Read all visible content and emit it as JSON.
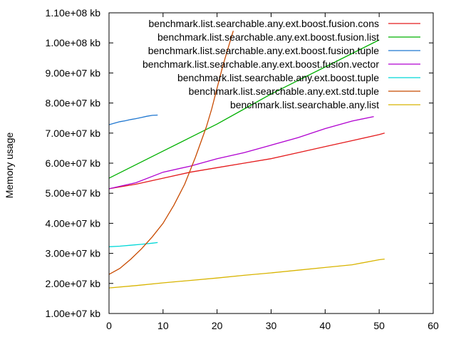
{
  "chart_data": {
    "type": "line",
    "title": "",
    "xlabel": "",
    "ylabel": "Memory usage",
    "xlim": [
      0,
      60
    ],
    "ylim": [
      10000000,
      110000000
    ],
    "x_ticks": [
      "0",
      "10",
      "20",
      "30",
      "40",
      "50",
      "60"
    ],
    "y_ticks": [
      "1.00e+07 kb",
      "2.00e+07 kb",
      "3.00e+07 kb",
      "4.00e+07 kb",
      "5.00e+07 kb",
      "6.00e+07 kb",
      "7.00e+07 kb",
      "8.00e+07 kb",
      "9.00e+07 kb",
      "1.00e+08 kb",
      "1.10e+08 kb"
    ],
    "grid": false,
    "legend_position": "top-right",
    "series": [
      {
        "name": "benchmark.list.searchable.any.ext.boost.fusion.cons",
        "color": "#e41a1c",
        "x": [
          0,
          5,
          10,
          15,
          20,
          25,
          30,
          35,
          40,
          45,
          50,
          51
        ],
        "y": [
          51500000,
          53000000,
          55000000,
          57000000,
          58500000,
          60000000,
          61500000,
          63500000,
          65500000,
          67500000,
          69500000,
          70000000
        ]
      },
      {
        "name": "benchmark.list.searchable.any.ext.boost.fusion.list",
        "color": "#00b000",
        "x": [
          0,
          5,
          10,
          15,
          20,
          25,
          30,
          35,
          40,
          45,
          50
        ],
        "y": [
          55000000,
          59500000,
          64000000,
          68500000,
          73000000,
          78000000,
          83000000,
          87500000,
          92000000,
          96500000,
          101000000
        ]
      },
      {
        "name": "benchmark.list.searchable.any.ext.boost.fusion.tuple",
        "color": "#1f77d0",
        "x": [
          0,
          1,
          2,
          3,
          4,
          5,
          6,
          7,
          8,
          9
        ],
        "y": [
          72800000,
          73300000,
          73800000,
          74100000,
          74500000,
          74800000,
          75200000,
          75600000,
          75900000,
          76000000
        ]
      },
      {
        "name": "benchmark.list.searchable.any.ext.boost.fusion.vector",
        "color": "#b000d0",
        "x": [
          0,
          5,
          10,
          15,
          20,
          25,
          30,
          35,
          40,
          45,
          49
        ],
        "y": [
          51500000,
          53500000,
          57000000,
          59000000,
          61500000,
          63500000,
          66000000,
          68500000,
          71500000,
          74000000,
          75500000
        ]
      },
      {
        "name": "benchmark.list.searchable.any.ext.boost.tuple",
        "color": "#00d8d8",
        "x": [
          0,
          2,
          4,
          6,
          8,
          9
        ],
        "y": [
          32200000,
          32400000,
          32700000,
          33000000,
          33400000,
          33600000
        ]
      },
      {
        "name": "benchmark.list.searchable.any.ext.std.tuple",
        "color": "#c84a00",
        "x": [
          0,
          2,
          4,
          6,
          8,
          10,
          12,
          14,
          16,
          18,
          19,
          20,
          21,
          22,
          23
        ],
        "y": [
          23000000,
          25000000,
          28000000,
          31500000,
          35500000,
          40000000,
          46000000,
          53000000,
          62000000,
          72000000,
          78000000,
          85000000,
          92000000,
          98000000,
          104000000
        ]
      },
      {
        "name": "benchmark.list.searchable.any.list",
        "color": "#d8b400",
        "x": [
          0,
          5,
          10,
          15,
          20,
          25,
          30,
          35,
          40,
          45,
          50,
          51
        ],
        "y": [
          18500000,
          19300000,
          20200000,
          21000000,
          21800000,
          22700000,
          23500000,
          24400000,
          25300000,
          26200000,
          27900000,
          28100000
        ]
      }
    ]
  }
}
